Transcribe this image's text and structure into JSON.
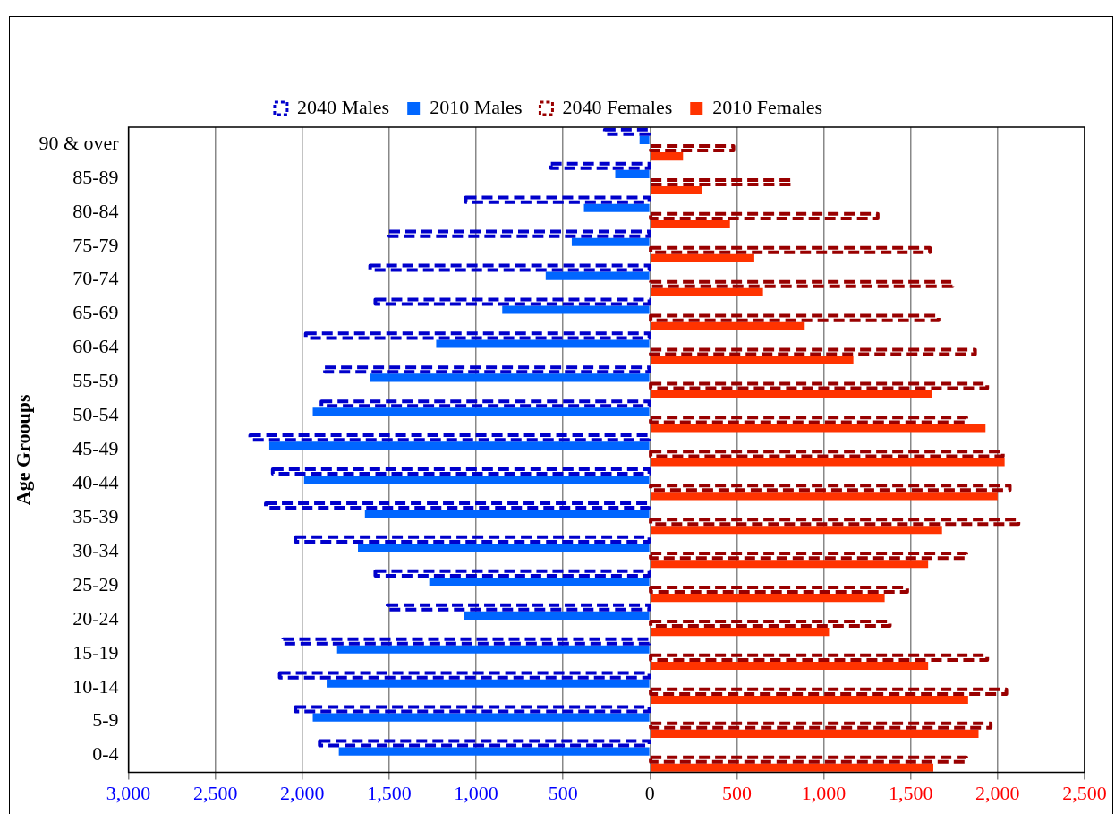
{
  "chart_data": {
    "type": "bar",
    "orientation": "horizontal",
    "ylabel": "Age Grooups",
    "categories": [
      "90 & over",
      "85-89",
      "80-84",
      "75-79",
      "70-74",
      "65-69",
      "60-64",
      "55-59",
      "50-54",
      "45-49",
      "40-44",
      "35-39",
      "30-34",
      "25-29",
      "20-24",
      "15-19",
      "10-14",
      "5-9",
      "0-4"
    ],
    "series": [
      {
        "name": "2040 Males",
        "color": "#0000cc",
        "line_style": "dashed",
        "values": [
          -260,
          -570,
          -1060,
          -1500,
          -1610,
          -1580,
          -1980,
          -1870,
          -1890,
          -2300,
          -2170,
          -2210,
          -2040,
          -1580,
          -1510,
          -2110,
          -2130,
          -2040,
          -1900
        ]
      },
      {
        "name": "2010 Males",
        "color": "#0066ff",
        "line_style": "solid",
        "values": [
          -60,
          -200,
          -380,
          -450,
          -600,
          -850,
          -1230,
          -1610,
          -1940,
          -2190,
          -1990,
          -1640,
          -1680,
          -1270,
          -1070,
          -1800,
          -1860,
          -1940,
          -1790
        ]
      },
      {
        "name": "2040 Females",
        "color": "#990000",
        "line_style": "dashed",
        "values": [
          480,
          810,
          1310,
          1610,
          1740,
          1660,
          1870,
          1940,
          1820,
          2030,
          2070,
          2120,
          1820,
          1480,
          1380,
          1940,
          2050,
          1960,
          1820
        ]
      },
      {
        "name": "2010 Females",
        "color": "#ff3300",
        "line_style": "solid",
        "values": [
          190,
          300,
          460,
          600,
          650,
          890,
          1170,
          1620,
          1930,
          2040,
          2000,
          1680,
          1600,
          1350,
          1030,
          1600,
          1830,
          1890,
          1630
        ]
      }
    ],
    "xlim": [
      -3000,
      2500
    ],
    "xticks": [
      {
        "value": -3000,
        "label": "3,000"
      },
      {
        "value": -2500,
        "label": "2,500"
      },
      {
        "value": -2000,
        "label": "2,000"
      },
      {
        "value": -1500,
        "label": "1,500"
      },
      {
        "value": -1000,
        "label": "1,000"
      },
      {
        "value": -500,
        "label": "500"
      },
      0,
      {
        "value": 500,
        "label": "500"
      },
      {
        "value": 1000,
        "label": "1,000"
      },
      {
        "value": 1500,
        "label": "1,500"
      },
      {
        "value": 2000,
        "label": "2,000"
      },
      {
        "value": 2500,
        "label": "2,500"
      }
    ],
    "grid": "x",
    "legend": "top"
  }
}
